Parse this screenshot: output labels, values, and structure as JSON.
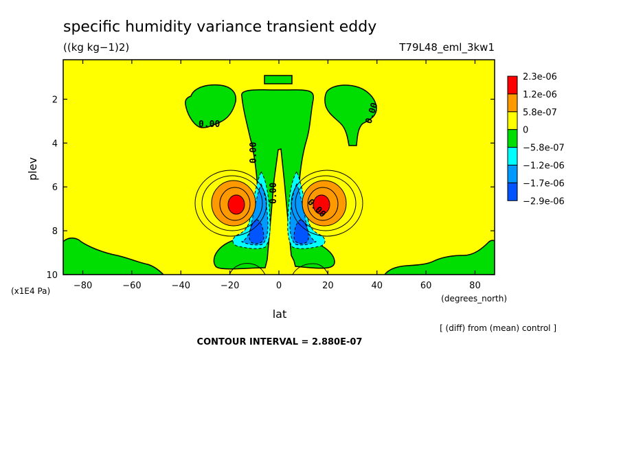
{
  "chart_data": {
    "type": "contour",
    "title": "specific humidity variance transient eddy",
    "units": "((kg kg−1)2)",
    "experiment": "T79L48_eml_3kw1",
    "xlabel": "lat",
    "xunits": "(degrees_north)",
    "ylabel": "plev",
    "yunits": "(x1E4 Pa)",
    "xlim": [
      -88,
      88
    ],
    "ylim": [
      10,
      0.2
    ],
    "x_ticks": [
      -80,
      -60,
      -40,
      -20,
      0,
      20,
      40,
      60,
      80
    ],
    "x_tick_labels": [
      "−80",
      "−60",
      "−40",
      "−20",
      "0",
      "20",
      "40",
      "60",
      "80"
    ],
    "y_ticks": [
      2,
      4,
      6,
      8,
      10
    ],
    "y_tick_labels": [
      "2",
      "4",
      "6",
      "8",
      "10"
    ],
    "contour_interval": "CONTOUR INTERVAL = 2.880E-07",
    "note": "[ (diff) from (mean) control ]",
    "contour_labels": [
      "0.00",
      "0.00",
      "0.00",
      "0.00",
      "0.00"
    ],
    "colorbar": {
      "labels": [
        "2.3e-06",
        "1.2e-06",
        "5.8e-07",
        "0",
        "−5.8e-07",
        "−1.2e-06",
        "−1.7e-06",
        "−2.9e-06"
      ],
      "colors": [
        "#ff0000",
        "#ff9900",
        "#ffff00",
        "#00dd00",
        "#00ffff",
        "#0099ff",
        "#0055ff"
      ]
    },
    "features": [
      {
        "kind": "maximum",
        "lat": -18,
        "plev": 7.0,
        "level": "2.3e-06"
      },
      {
        "kind": "maximum",
        "lat": 18,
        "plev": 7.0,
        "level": "2.3e-06"
      },
      {
        "kind": "minimum",
        "lat": -11,
        "plev": 8.3,
        "level": "−2.9e-06"
      },
      {
        "kind": "minimum",
        "lat": 11,
        "plev": 8.3,
        "level": "−2.9e-06"
      }
    ]
  }
}
